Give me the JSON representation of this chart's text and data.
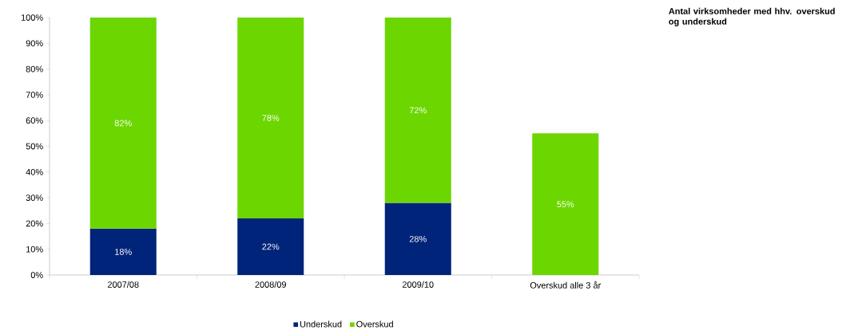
{
  "chart_data": {
    "type": "bar",
    "stacked": true,
    "title": "Antal virksomheder med hhv. overskud og underskud",
    "categories": [
      "2007/08",
      "2008/09",
      "2009/10",
      "Overskud alle 3 år"
    ],
    "series": [
      {
        "name": "Underskud",
        "color": "#00247a",
        "values": [
          18,
          22,
          28,
          null
        ],
        "value_labels": [
          "18%",
          "22%",
          "28%",
          null
        ]
      },
      {
        "name": "Overskud",
        "color": "#6cd600",
        "values": [
          82,
          78,
          72,
          55
        ],
        "value_labels": [
          "82%",
          "78%",
          "72%",
          "55%"
        ]
      }
    ],
    "ylim": [
      0,
      100
    ],
    "yticks": [
      {
        "value": 0,
        "label": "0%"
      },
      {
        "value": 10,
        "label": "10%"
      },
      {
        "value": 20,
        "label": "20%"
      },
      {
        "value": 30,
        "label": "30%"
      },
      {
        "value": 40,
        "label": "40%"
      },
      {
        "value": 50,
        "label": "50%"
      },
      {
        "value": 60,
        "label": "60%"
      },
      {
        "value": 70,
        "label": "70%"
      },
      {
        "value": 80,
        "label": "80%"
      },
      {
        "value": 90,
        "label": "90%"
      },
      {
        "value": 100,
        "label": "100%"
      }
    ],
    "legend": "bottom"
  }
}
